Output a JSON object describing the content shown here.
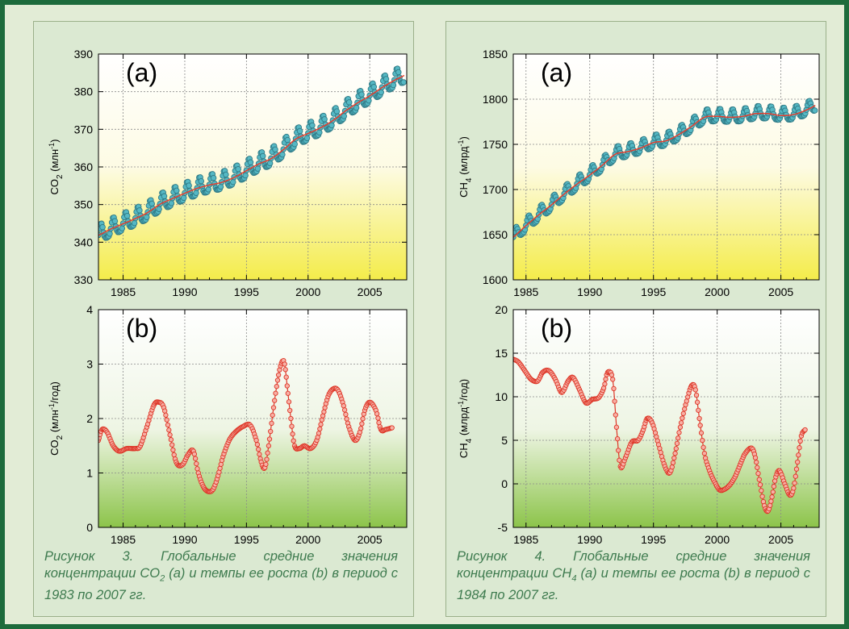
{
  "colors": {
    "border": "#1d6b3c",
    "page_bg": "#e2ecd6",
    "panel_bg": "#dbe9d2",
    "caption_text": "#3d7a4e",
    "trend_line": "#e53e2e",
    "monthly_marker_fill": "#55b8c4",
    "monthly_marker_stroke": "#2f7a86",
    "growth_marker_fill": "#f7b0a5",
    "growth_marker_stroke": "#dd3526",
    "gradient_yellow": "#f4ec4a",
    "gradient_green": "#8cc44a"
  },
  "panels": {
    "left": {
      "caption": {
        "prefix": "Рисунок 3. Глобальные средние значения концентрации CO",
        "sub": "2",
        "suffix": " (a) и темпы ее роста (b) в период с 1983 по 2007 гг."
      }
    },
    "right": {
      "caption": {
        "prefix": "Рисунок 4. Глобальные средние значения концентрации CH",
        "sub": "4",
        "suffix": " (a) и темпы ее роста (b) в период с 1984 по 2007 гг."
      }
    }
  },
  "chart_data": [
    {
      "id": "co2-concentration",
      "type": "line",
      "panel": "left",
      "tag": "(a)",
      "ylabel": {
        "base": "CO",
        "sub": "2",
        "rest": " (млн",
        "sup": "-1",
        "end": ")"
      },
      "xlim": [
        1983,
        2008
      ],
      "ylim": [
        330,
        390
      ],
      "xticks": [
        1985,
        1990,
        1995,
        2000,
        2005
      ],
      "yticks": [
        330,
        340,
        350,
        360,
        370,
        380,
        390
      ],
      "grid": true,
      "background_gradient": "yellow-bottom",
      "series": [
        {
          "kind": "trend",
          "x": [
            1983.0,
            1984.0,
            1985.0,
            1986.0,
            1987.0,
            1988.0,
            1989.0,
            1990.0,
            1991.0,
            1992.0,
            1993.0,
            1994.0,
            1995.0,
            1996.0,
            1997.0,
            1998.0,
            1999.0,
            2000.0,
            2001.0,
            2002.0,
            2003.0,
            2004.0,
            2005.0,
            2006.0,
            2007.0,
            2007.8
          ],
          "y": [
            341.8,
            343.5,
            344.9,
            346.3,
            347.9,
            350.1,
            351.6,
            353.0,
            354.3,
            355.2,
            355.9,
            357.2,
            359.0,
            360.8,
            362.2,
            364.6,
            367.4,
            368.9,
            370.4,
            372.3,
            374.8,
            377.0,
            378.9,
            381.1,
            383.0,
            384.3
          ]
        },
        {
          "kind": "monthly",
          "seasonal_amplitude": 2.3
        }
      ]
    },
    {
      "id": "co2-growth-rate",
      "type": "line",
      "panel": "left",
      "tag": "(b)",
      "ylabel": {
        "base": "CO",
        "sub": "2",
        "rest": " (млн",
        "sup": "-1",
        "end": "/год)"
      },
      "xlim": [
        1983,
        2008
      ],
      "ylim": [
        0,
        4
      ],
      "xticks": [
        1985,
        1990,
        1995,
        2000,
        2005
      ],
      "yticks": [
        0,
        1,
        2,
        3,
        4
      ],
      "grid": true,
      "background_gradient": "green-bottom",
      "series": [
        {
          "kind": "growth",
          "x": [
            1983.0,
            1983.3,
            1983.7,
            1984.2,
            1984.7,
            1985.3,
            1986.0,
            1986.4,
            1987.0,
            1987.5,
            1987.9,
            1988.3,
            1988.8,
            1989.3,
            1989.8,
            1990.3,
            1990.7,
            1991.1,
            1991.5,
            1991.9,
            1992.3,
            1992.7,
            1993.1,
            1993.6,
            1994.1,
            1994.7,
            1995.3,
            1995.8,
            1996.2,
            1996.5,
            1996.8,
            1997.2,
            1997.6,
            1997.9,
            1998.1,
            1998.3,
            1998.6,
            1998.9,
            1999.3,
            1999.7,
            2000.2,
            2000.7,
            2001.2,
            2001.7,
            2002.3,
            2002.8,
            2003.3,
            2003.8,
            2004.2,
            2004.6,
            2005.0,
            2005.5,
            2005.9,
            2006.3,
            2006.8
          ],
          "y": [
            1.6,
            1.8,
            1.75,
            1.5,
            1.4,
            1.45,
            1.45,
            1.5,
            1.9,
            2.25,
            2.3,
            2.2,
            1.7,
            1.2,
            1.15,
            1.35,
            1.4,
            1.0,
            0.75,
            0.66,
            0.7,
            0.95,
            1.3,
            1.6,
            1.75,
            1.85,
            1.88,
            1.6,
            1.2,
            1.1,
            1.5,
            2.2,
            2.8,
            3.05,
            3.0,
            2.6,
            2.0,
            1.5,
            1.45,
            1.5,
            1.45,
            1.6,
            2.05,
            2.45,
            2.55,
            2.3,
            1.85,
            1.6,
            1.75,
            2.15,
            2.3,
            2.15,
            1.8,
            1.8,
            1.83
          ]
        }
      ]
    },
    {
      "id": "ch4-concentration",
      "type": "line",
      "panel": "right",
      "tag": "(a)",
      "ylabel": {
        "base": "CH",
        "sub": "4",
        "rest": " (млрд",
        "sup": "-1",
        "end": ")"
      },
      "xlim": [
        1984,
        2008
      ],
      "ylim": [
        1600,
        1850
      ],
      "xticks": [
        1985,
        1990,
        1995,
        2000,
        2005
      ],
      "yticks": [
        1600,
        1650,
        1700,
        1750,
        1800,
        1850
      ],
      "grid": true,
      "background_gradient": "yellow-bottom",
      "series": [
        {
          "kind": "trend",
          "x": [
            1984.0,
            1985.0,
            1986.0,
            1987.0,
            1988.0,
            1989.0,
            1990.0,
            1991.0,
            1992.0,
            1993.0,
            1994.0,
            1995.0,
            1996.0,
            1997.0,
            1998.0,
            1999.0,
            2000.0,
            2001.0,
            2002.0,
            2003.0,
            2004.0,
            2005.0,
            2006.0,
            2007.0,
            2007.7
          ],
          "y": [
            1647,
            1660,
            1672,
            1683,
            1695,
            1706,
            1716,
            1727,
            1739,
            1742,
            1746,
            1752,
            1754,
            1761,
            1770,
            1780,
            1781,
            1780,
            1781,
            1784,
            1784,
            1782,
            1783,
            1788,
            1793
          ]
        },
        {
          "kind": "monthly",
          "seasonal_amplitude": 7
        }
      ]
    },
    {
      "id": "ch4-growth-rate",
      "type": "line",
      "panel": "right",
      "tag": "(b)",
      "ylabel": {
        "base": "CH",
        "sub": "4",
        "rest": " (млрд",
        "sup": "-1",
        "end": "/год)"
      },
      "xlim": [
        1984,
        2008
      ],
      "ylim": [
        -5,
        20
      ],
      "xticks": [
        1985,
        1990,
        1995,
        2000,
        2005
      ],
      "yticks": [
        -5,
        0,
        5,
        10,
        15,
        20
      ],
      "grid": true,
      "background_gradient": "green-bottom",
      "series": [
        {
          "kind": "growth",
          "x": [
            1984.0,
            1984.4,
            1984.9,
            1985.4,
            1985.9,
            1986.3,
            1986.8,
            1987.3,
            1987.8,
            1988.3,
            1988.7,
            1989.2,
            1989.7,
            1990.2,
            1990.7,
            1991.1,
            1991.4,
            1991.8,
            1992.1,
            1992.4,
            1992.8,
            1993.3,
            1993.8,
            1994.2,
            1994.5,
            1994.9,
            1995.4,
            1995.9,
            1996.3,
            1996.7,
            1997.1,
            1997.6,
            1998.0,
            1998.3,
            1998.6,
            1999.0,
            1999.4,
            1999.8,
            2000.2,
            2000.6,
            2001.0,
            2001.4,
            2001.8,
            2002.2,
            2002.7,
            2003.0,
            2003.3,
            2003.7,
            2004.0,
            2004.3,
            2004.6,
            2004.9,
            2005.3,
            2005.7,
            2006.0,
            2006.3,
            2006.6,
            2006.9
          ],
          "y": [
            14.3,
            14.0,
            13.0,
            12.0,
            11.8,
            12.8,
            13.0,
            12.0,
            10.5,
            11.8,
            12.2,
            10.8,
            9.3,
            9.7,
            9.9,
            11.0,
            12.8,
            12.0,
            6.5,
            2.0,
            3.0,
            4.8,
            5.0,
            6.2,
            7.5,
            7.0,
            4.5,
            2.0,
            1.3,
            3.5,
            6.5,
            9.5,
            11.3,
            10.8,
            7.5,
            3.5,
            1.5,
            0.2,
            -0.7,
            -0.6,
            -0.1,
            0.8,
            2.2,
            3.5,
            4.1,
            3.0,
            0.5,
            -2.5,
            -3.1,
            -1.5,
            0.8,
            1.5,
            0.0,
            -1.3,
            -0.5,
            2.5,
            5.5,
            6.2
          ]
        }
      ]
    }
  ]
}
